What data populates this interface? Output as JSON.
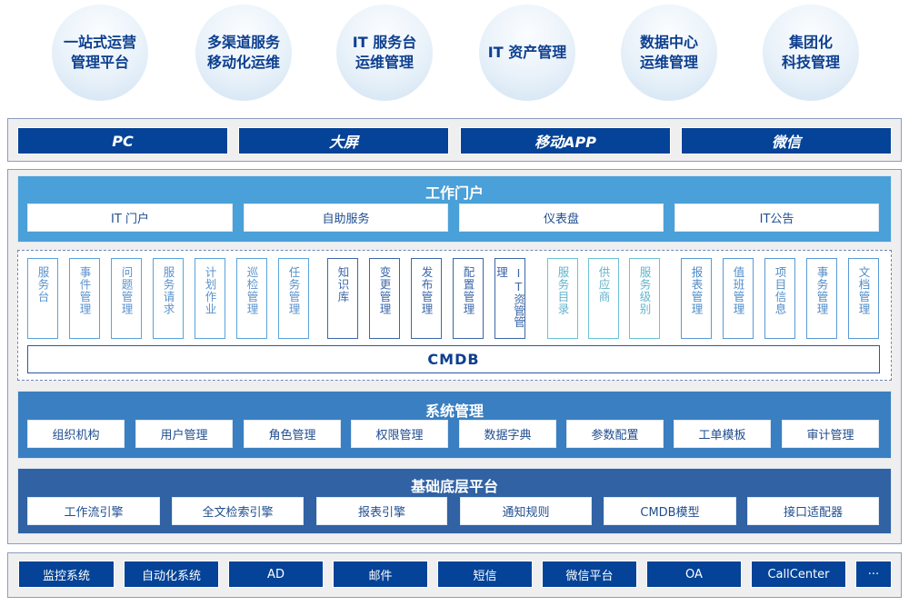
{
  "goals": [
    "一站式运营\n管理平台",
    "多渠道服务\n移动化运维",
    "IT 服务台\n运维管理",
    "IT 资产管理",
    "数据中心\n运维管理",
    "集团化\n科技管理"
  ],
  "channels": [
    "PC",
    "大屏",
    "移动APP",
    "微信"
  ],
  "portal": {
    "title": "工作门户",
    "items": [
      "IT 门户",
      "自助服务",
      "仪表盘",
      "IT公告"
    ]
  },
  "modules": {
    "group1": [
      "服务台",
      "事件管理",
      "问题管理",
      "服务请求",
      "计划作业",
      "巡检管理",
      "任务管理"
    ],
    "group2": [
      "知识库",
      "变更管理",
      "发布管理",
      "配置管理",
      "IT资管管理"
    ],
    "group3": [
      "服务目录",
      "供应商",
      "服务级别"
    ],
    "group4": [
      "报表管理",
      "值班管理",
      "项目信息",
      "事务管理",
      "文档管理"
    ],
    "cmdb": "CMDB"
  },
  "system": {
    "title": "系统管理",
    "items": [
      "组织机构",
      "用户管理",
      "角色管理",
      "权限管理",
      "数据字典",
      "参数配置",
      "工单模板",
      "审计管理"
    ]
  },
  "base": {
    "title": "基础底层平台",
    "items": [
      "工作流引擎",
      "全文检索引擎",
      "报表引擎",
      "通知规则",
      "CMDB模型",
      "接口适配器"
    ]
  },
  "integrations": [
    "监控系统",
    "自动化系统",
    "AD",
    "邮件",
    "短信",
    "微信平台",
    "OA",
    "CallCenter",
    "···"
  ],
  "colors": {
    "dark_blue": "#044397",
    "portal": "#4aa0d8",
    "system": "#3a7fc1",
    "base": "#3062a4"
  }
}
